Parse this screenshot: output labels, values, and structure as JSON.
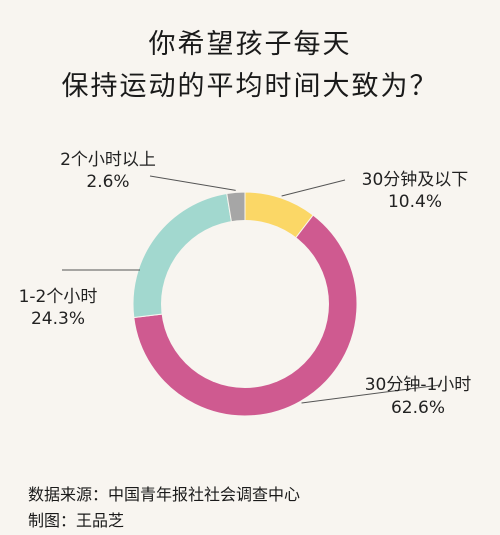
{
  "chart_data": {
    "type": "pie",
    "title_lines": [
      "你希望孩子每天",
      "保持运动的平均时间大致为？"
    ],
    "slices": [
      {
        "name": "30分钟及以下",
        "value": 10.4,
        "label": "10.4%",
        "color": "#fbd766"
      },
      {
        "name": "30分钟-1小时",
        "value": 62.6,
        "label": "62.6%",
        "color": "#cf5a90"
      },
      {
        "name": "1-2个小时",
        "value": 24.3,
        "label": "24.3%",
        "color": "#a2d8cf"
      },
      {
        "name": "2个小时以上",
        "value": 2.6,
        "label": "2.6%",
        "color": "#a6a6a6"
      }
    ]
  },
  "footer": {
    "source": "数据来源：中国青年报社社会调查中心",
    "credit": "制图：王品芝"
  }
}
